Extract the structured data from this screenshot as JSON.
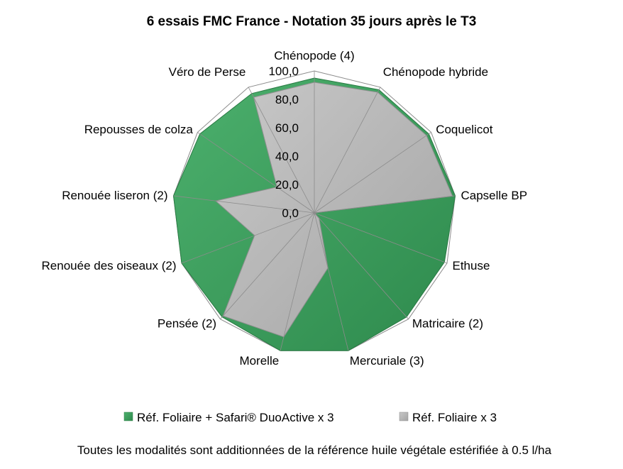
{
  "chart_data": {
    "type": "radar",
    "title": "6 essais FMC France  - Notation 35 jours après le T3",
    "categories": [
      "Chénopode (4)",
      "Chénopode hybride",
      "Coquelicot",
      "Capselle BP",
      "Ethuse",
      "Matricaire (2)",
      "Mercuriale (3)",
      "Morelle",
      "Pensée (2)",
      "Renouée des oiseaux (2)",
      "Renouée liseron (2)",
      "Repousses de colza",
      "Véro de Perse"
    ],
    "rlim": [
      0,
      100
    ],
    "ticks": [
      "0,0",
      "20,0",
      "40,0",
      "60,0",
      "80,0",
      "100,0"
    ],
    "tick_values": [
      0,
      20,
      40,
      60,
      80,
      100
    ],
    "series": [
      {
        "name": "Réf. Foliaire + Safari® DuoActive x 3",
        "color": "#3a9a5b",
        "values": [
          95,
          98,
          98,
          100,
          98,
          98,
          100,
          100,
          98,
          100,
          100,
          98,
          95
        ]
      },
      {
        "name": "Réf. Foliaire x 3",
        "color": "#b4b4b4",
        "values": [
          92,
          96,
          96,
          98,
          0,
          5,
          40,
          90,
          97,
          45,
          70,
          32,
          92
        ]
      }
    ],
    "legend_position": "bottom"
  },
  "footnote": "Toutes les modalités sont additionnées de la référence huile végétale estérifiée à 0.5 l/ha"
}
